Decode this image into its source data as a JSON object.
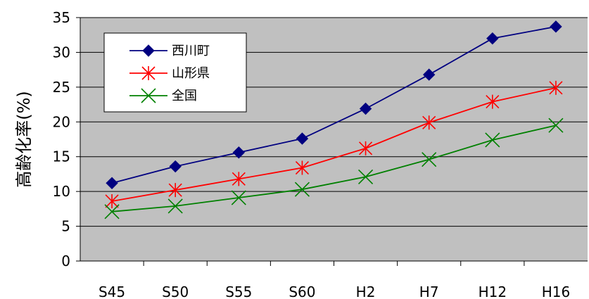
{
  "chart_data": {
    "type": "line",
    "title": "",
    "xlabel": "",
    "ylabel": "高齢化率(%)",
    "categories": [
      "S45",
      "S50",
      "S55",
      "S60",
      "H2",
      "H7",
      "H12",
      "H16"
    ],
    "ylim": [
      0,
      35
    ],
    "yticks": [
      0,
      5,
      10,
      15,
      20,
      25,
      30,
      35
    ],
    "grid": true,
    "legend": "top-left",
    "series": [
      {
        "name": "西川町",
        "color": "#000080",
        "marker": "diamond",
        "values": [
          11.2,
          13.6,
          15.6,
          17.6,
          21.9,
          26.8,
          32.0,
          33.7
        ]
      },
      {
        "name": "山形県",
        "color": "#ff0000",
        "marker": "asterisk",
        "values": [
          8.6,
          10.2,
          11.8,
          13.4,
          16.2,
          19.9,
          22.9,
          24.9
        ]
      },
      {
        "name": "全国",
        "color": "#008000",
        "marker": "x",
        "values": [
          7.1,
          7.9,
          9.1,
          10.3,
          12.1,
          14.6,
          17.4,
          19.5
        ]
      }
    ]
  }
}
